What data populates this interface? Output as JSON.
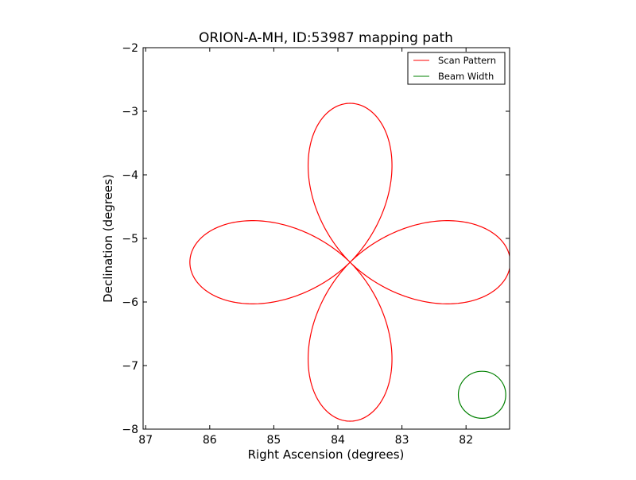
{
  "chart_data": {
    "type": "line",
    "title": "ORION-A-MH, ID:53987 mapping path",
    "xlabel": "Right Ascension (degrees)",
    "ylabel": "Declination (degrees)",
    "xlim": [
      87.04,
      81.32
    ],
    "ylim": [
      -8,
      -2
    ],
    "xticks": [
      87,
      86,
      85,
      84,
      83,
      82
    ],
    "yticks": [
      -2,
      -3,
      -4,
      -5,
      -6,
      -7,
      -8
    ],
    "xtick_labels": [
      "87",
      "86",
      "85",
      "84",
      "83",
      "82"
    ],
    "ytick_labels": [
      "−2",
      "−3",
      "−4",
      "−5",
      "−6",
      "−7",
      "−8"
    ],
    "grid": false,
    "legend": {
      "placement": "top-right",
      "entries": [
        "Scan Pattern",
        "Beam Width"
      ]
    },
    "series": [
      {
        "name": "Scan Pattern",
        "color": "#ff0000",
        "kind": "rose-curve",
        "center_ra": 83.81,
        "center_dec": -5.375,
        "radius_deg": 2.5,
        "petals": 4,
        "petal_exponent": 1.1
      },
      {
        "name": "Beam Width",
        "color": "#008000",
        "kind": "circle",
        "center_ra": 81.75,
        "center_dec": -7.46,
        "radius_deg": 0.37
      }
    ]
  }
}
